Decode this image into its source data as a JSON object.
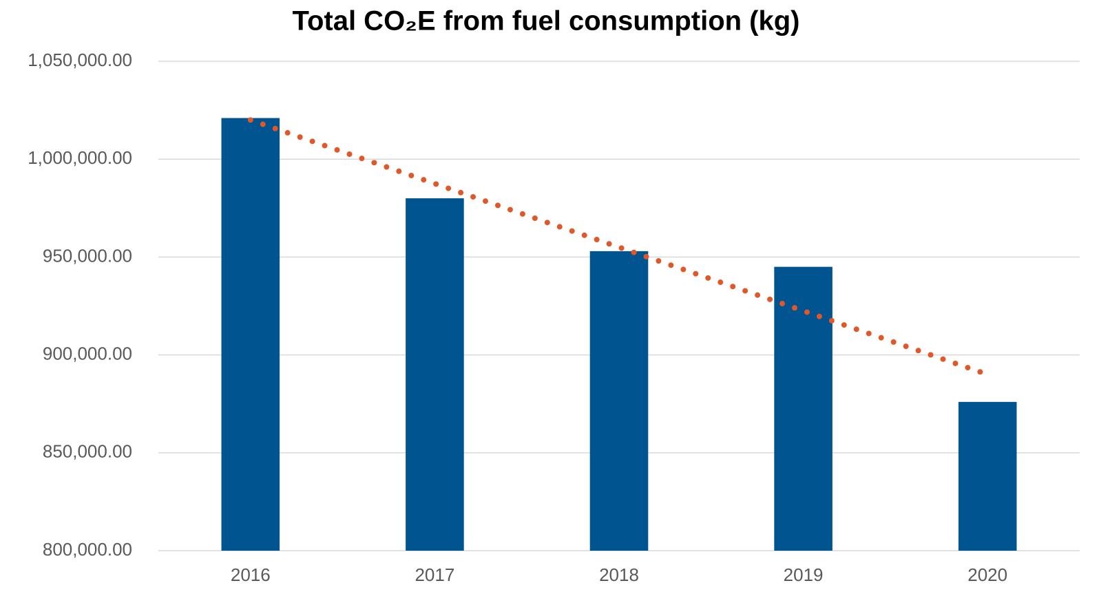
{
  "chart_data": {
    "type": "bar",
    "title": "Total CO₂E from fuel consumption (kg)",
    "categories": [
      "2016",
      "2017",
      "2018",
      "2019",
      "2020"
    ],
    "values": [
      1021000,
      980000,
      953000,
      945000,
      876000
    ],
    "color": "#00548f",
    "trendline": {
      "type": "linear",
      "color": "#e0582a",
      "style": "dotted"
    },
    "ylim": [
      800000,
      1050000
    ],
    "yticks": [
      {
        "value": 800000,
        "label": "800,000.00"
      },
      {
        "value": 850000,
        "label": "850,000.00"
      },
      {
        "value": 900000,
        "label": "900,000.00"
      },
      {
        "value": 950000,
        "label": "950,000.00"
      },
      {
        "value": 1000000,
        "label": "1,000,000.00"
      },
      {
        "value": 1050000,
        "label": "1,050,000.00"
      }
    ],
    "grid": true
  }
}
